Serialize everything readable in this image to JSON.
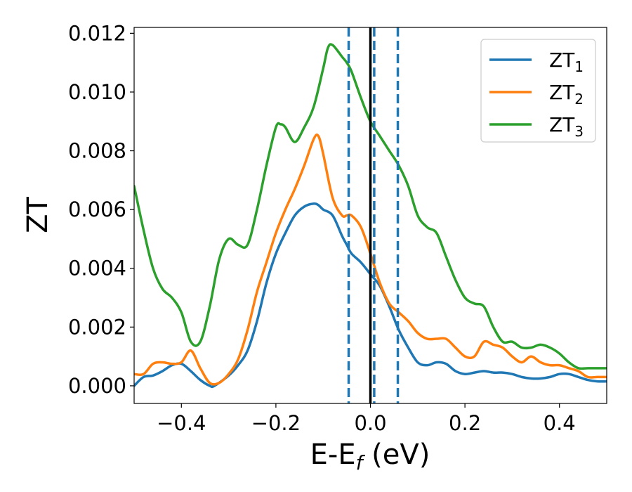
{
  "chart_data": {
    "type": "line",
    "xlabel": {
      "main": "E-E",
      "sub": "f",
      "unit": " (eV)"
    },
    "ylabel": "ZT",
    "xlim": [
      -0.5,
      0.5
    ],
    "ylim": [
      -0.0006,
      0.0122
    ],
    "xticks": [
      -0.4,
      -0.2,
      0.0,
      0.2,
      0.4
    ],
    "xtick_labels": [
      "−0.4",
      "−0.2",
      "0.0",
      "0.2",
      "0.4"
    ],
    "yticks": [
      0.0,
      0.002,
      0.004,
      0.006,
      0.008,
      0.01,
      0.012
    ],
    "ytick_labels": [
      "0.000",
      "0.002",
      "0.004",
      "0.006",
      "0.008",
      "0.010",
      "0.012"
    ],
    "grid": false,
    "legend_position": "top-right",
    "vlines": [
      {
        "x": 0.0,
        "color": "#000000",
        "style": "solid"
      },
      {
        "x": -0.046,
        "color": "#1f77b4",
        "style": "dashed"
      },
      {
        "x": 0.008,
        "color": "#1f77b4",
        "style": "dashed"
      },
      {
        "x": 0.058,
        "color": "#1f77b4",
        "style": "dashed"
      }
    ],
    "series": [
      {
        "name": "ZT",
        "subscript": "1",
        "color": "#1f77b4",
        "x": [
          -0.5,
          -0.48,
          -0.46,
          -0.44,
          -0.42,
          -0.4,
          -0.38,
          -0.36,
          -0.34,
          -0.33,
          -0.3,
          -0.28,
          -0.26,
          -0.24,
          -0.22,
          -0.2,
          -0.18,
          -0.16,
          -0.14,
          -0.12,
          -0.11,
          -0.1,
          -0.08,
          -0.06,
          -0.05,
          -0.04,
          -0.02,
          0.0,
          0.02,
          0.04,
          0.06,
          0.08,
          0.1,
          0.12,
          0.14,
          0.16,
          0.18,
          0.2,
          0.22,
          0.24,
          0.26,
          0.28,
          0.3,
          0.32,
          0.34,
          0.36,
          0.38,
          0.4,
          0.42,
          0.44,
          0.46,
          0.48,
          0.5
        ],
        "y": [
          0.0,
          0.0003,
          0.00035,
          0.0005,
          0.0007,
          0.00075,
          0.0005,
          0.0002,
          0.0,
          0.0,
          0.00035,
          0.0007,
          0.0012,
          0.0022,
          0.0035,
          0.0045,
          0.0052,
          0.0058,
          0.0061,
          0.0062,
          0.00615,
          0.006,
          0.0058,
          0.0051,
          0.0048,
          0.0045,
          0.0042,
          0.0038,
          0.0034,
          0.0027,
          0.0019,
          0.0013,
          0.0008,
          0.0007,
          0.0008,
          0.00075,
          0.0005,
          0.0004,
          0.00045,
          0.0005,
          0.00045,
          0.00045,
          0.0004,
          0.0003,
          0.00025,
          0.00025,
          0.0003,
          0.0004,
          0.0004,
          0.0003,
          0.0002,
          0.00015,
          0.00015
        ]
      },
      {
        "name": "ZT",
        "subscript": "2",
        "color": "#ff7f0e",
        "x": [
          -0.5,
          -0.48,
          -0.46,
          -0.44,
          -0.42,
          -0.4,
          -0.38,
          -0.36,
          -0.34,
          -0.32,
          -0.3,
          -0.28,
          -0.26,
          -0.24,
          -0.22,
          -0.2,
          -0.18,
          -0.16,
          -0.14,
          -0.12,
          -0.11,
          -0.1,
          -0.08,
          -0.06,
          -0.05,
          -0.04,
          -0.02,
          0.0,
          0.02,
          0.04,
          0.06,
          0.08,
          0.1,
          0.12,
          0.14,
          0.16,
          0.18,
          0.2,
          0.22,
          0.24,
          0.26,
          0.28,
          0.3,
          0.32,
          0.34,
          0.36,
          0.38,
          0.4,
          0.42,
          0.44,
          0.46,
          0.48,
          0.5
        ],
        "y": [
          0.0004,
          0.0004,
          0.00075,
          0.0008,
          0.00075,
          0.0008,
          0.0012,
          0.0006,
          0.0001,
          0.0001,
          0.0004,
          0.0009,
          0.0019,
          0.0032,
          0.0042,
          0.0052,
          0.006,
          0.0067,
          0.0075,
          0.0084,
          0.0085,
          0.0079,
          0.0064,
          0.0058,
          0.0058,
          0.0058,
          0.0054,
          0.0045,
          0.0035,
          0.0028,
          0.0025,
          0.0022,
          0.0018,
          0.0016,
          0.0016,
          0.0016,
          0.0013,
          0.001,
          0.001,
          0.0015,
          0.0014,
          0.0013,
          0.001,
          0.0008,
          0.001,
          0.0008,
          0.0007,
          0.0007,
          0.0006,
          0.0005,
          0.0003,
          0.0003,
          0.0003
        ]
      },
      {
        "name": "ZT",
        "subscript": "3",
        "color": "#2ca02c",
        "x": [
          -0.5,
          -0.48,
          -0.46,
          -0.44,
          -0.42,
          -0.4,
          -0.38,
          -0.36,
          -0.34,
          -0.32,
          -0.3,
          -0.28,
          -0.26,
          -0.24,
          -0.22,
          -0.2,
          -0.19,
          -0.18,
          -0.16,
          -0.14,
          -0.12,
          -0.1,
          -0.09,
          -0.08,
          -0.06,
          -0.05,
          -0.04,
          -0.02,
          0.0,
          0.02,
          0.04,
          0.06,
          0.08,
          0.1,
          0.12,
          0.14,
          0.16,
          0.18,
          0.2,
          0.22,
          0.24,
          0.26,
          0.28,
          0.3,
          0.32,
          0.34,
          0.36,
          0.38,
          0.4,
          0.42,
          0.44,
          0.46,
          0.48,
          0.5
        ],
        "y": [
          0.0068,
          0.0053,
          0.004,
          0.0033,
          0.003,
          0.0025,
          0.0015,
          0.0015,
          0.0027,
          0.0043,
          0.005,
          0.0048,
          0.0048,
          0.006,
          0.0075,
          0.0088,
          0.0089,
          0.0088,
          0.0083,
          0.0088,
          0.0095,
          0.0108,
          0.0115,
          0.0116,
          0.0112,
          0.011,
          0.0107,
          0.0098,
          0.009,
          0.0085,
          0.008,
          0.0075,
          0.0068,
          0.0058,
          0.0054,
          0.0052,
          0.0044,
          0.0036,
          0.003,
          0.0028,
          0.0027,
          0.002,
          0.0015,
          0.0015,
          0.0013,
          0.0013,
          0.0014,
          0.0013,
          0.0011,
          0.0008,
          0.0006,
          0.0006,
          0.0006,
          0.0006
        ]
      }
    ]
  }
}
